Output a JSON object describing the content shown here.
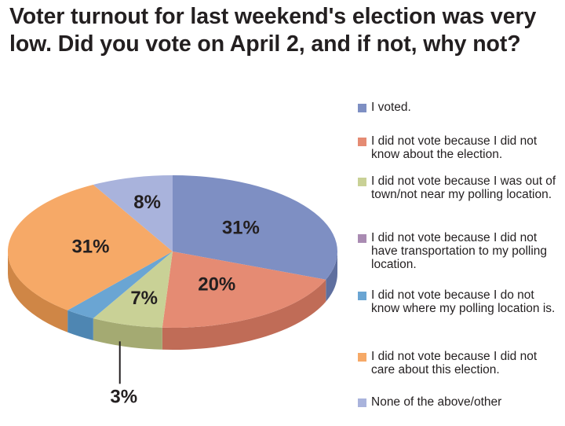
{
  "title": "Voter turnout for last weekend's election was very low. Did you vote on April 2, and if not, why not?",
  "chart_data": {
    "type": "pie",
    "title": "Voter turnout for last weekend's election was very low. Did you vote on April 2, and if not, why not?",
    "categories": [
      "I voted.",
      "I did not vote because I did not know about the election.",
      "I did not vote because I was out of town/not near my polling location.",
      "I did not vote because I did not have transportation to my polling location.",
      "I did not vote because I do not know where my polling location is.",
      "I did not vote because I did not care about this election.",
      "None of the above/other"
    ],
    "values": [
      31,
      20,
      7,
      0,
      3,
      31,
      8
    ],
    "value_labels": [
      "31%",
      "20%",
      "7%",
      "",
      "3%",
      "31%",
      "8%"
    ],
    "colors": [
      "#7e8fc3",
      "#e58b73",
      "#c9d196",
      "#a98bb2",
      "#6aa5d3",
      "#f6a967",
      "#a9b3dc"
    ],
    "side_colors": [
      "#5f6f9f",
      "#c06c57",
      "#a4aa72",
      "#8a6e93",
      "#4e86b2",
      "#cf8646",
      "#8690b8"
    ],
    "legend_position": "right"
  }
}
